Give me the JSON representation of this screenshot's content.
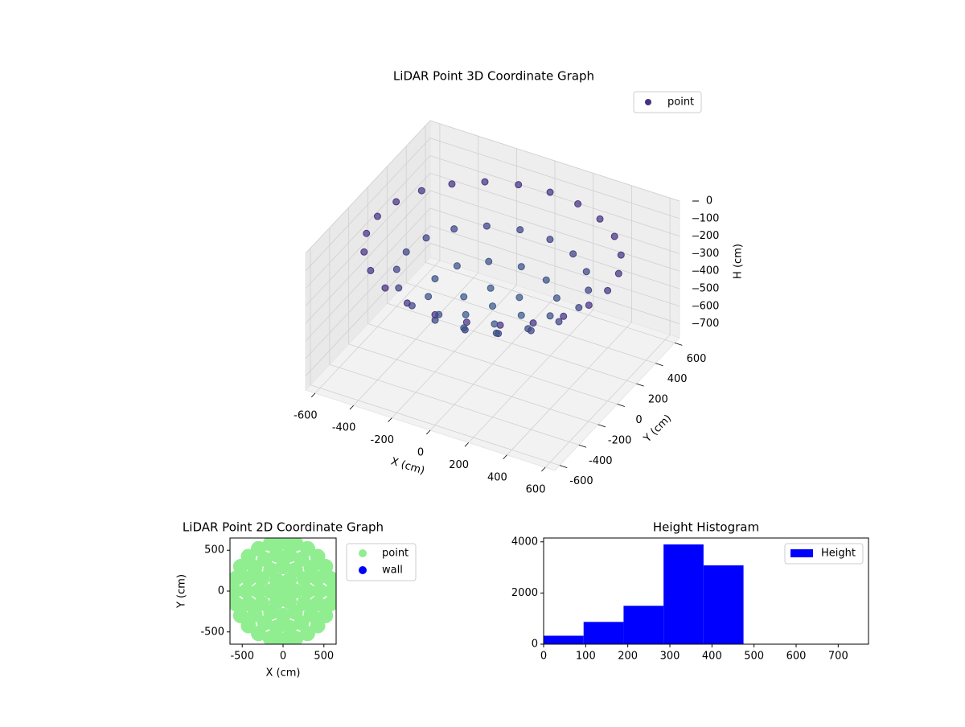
{
  "chart_data": [
    {
      "type": "scatter3d",
      "title": "LiDAR Point 3D Coordinate Graph",
      "xlabel": "X (cm)",
      "ylabel": "Y (cm)",
      "zlabel": "H (cm)",
      "xlim": [
        -650,
        650
      ],
      "ylim": [
        -650,
        650
      ],
      "zlim": [
        0,
        780
      ],
      "z_inverted": true,
      "xticks": [
        -600,
        -400,
        -200,
        0,
        200,
        400,
        600
      ],
      "yticks": [
        -600,
        -400,
        -200,
        0,
        200,
        400,
        600
      ],
      "zticks": [
        0,
        100,
        200,
        300,
        400,
        500,
        600,
        700
      ],
      "colormap": [
        "#46197a",
        "#2a7f8e"
      ],
      "legend": "upper right",
      "series": [
        {
          "name": "point",
          "color": "#46327e",
          "x": [
            600,
            580,
            520,
            424,
            300,
            155,
            0,
            -155,
            -300,
            -424,
            -520,
            -580,
            -600,
            -580,
            -520,
            -424,
            -300,
            -155,
            0,
            155,
            300,
            424,
            520,
            580,
            450,
            423,
            345,
            225,
            78,
            -78,
            -225,
            -345,
            -423,
            -450,
            -423,
            -345,
            -225,
            -78,
            78,
            225,
            345,
            423,
            300,
            260,
            150,
            0,
            -150,
            -260,
            -300,
            -260,
            -150,
            0,
            150,
            260,
            150,
            75,
            -75,
            -150,
            -75,
            75,
            0
          ],
          "y": [
            0,
            155,
            300,
            424,
            520,
            580,
            600,
            580,
            520,
            424,
            300,
            155,
            0,
            -155,
            -300,
            -424,
            -520,
            -580,
            -600,
            -580,
            -520,
            -424,
            -300,
            -155,
            0,
            154,
            289,
            390,
            443,
            443,
            390,
            289,
            154,
            0,
            -154,
            -289,
            -390,
            -443,
            -443,
            -390,
            -289,
            -154,
            0,
            150,
            260,
            300,
            260,
            150,
            0,
            -150,
            -260,
            -300,
            -260,
            -150,
            0,
            130,
            130,
            0,
            -130,
            -130,
            0
          ],
          "z": [
            150,
            150,
            150,
            150,
            150,
            150,
            150,
            150,
            150,
            150,
            150,
            150,
            150,
            150,
            150,
            150,
            150,
            150,
            150,
            150,
            150,
            150,
            150,
            150,
            300,
            300,
            300,
            300,
            300,
            300,
            300,
            300,
            300,
            300,
            300,
            300,
            300,
            300,
            300,
            300,
            300,
            300,
            400,
            400,
            400,
            400,
            400,
            400,
            400,
            400,
            400,
            400,
            400,
            400,
            450,
            450,
            450,
            450,
            450,
            450,
            450
          ]
        }
      ]
    },
    {
      "type": "scatter",
      "title": "LiDAR Point 2D Coordinate Graph",
      "xlabel": "X (cm)",
      "ylabel": "Y (cm)",
      "xlim": [
        -650,
        650
      ],
      "ylim": [
        -650,
        650
      ],
      "xticks": [
        -500,
        0,
        500
      ],
      "yticks": [
        -500,
        0,
        500
      ],
      "legend": "outside right",
      "series": [
        {
          "name": "point",
          "color": "#90ee90",
          "x": [
            600,
            580,
            520,
            424,
            300,
            155,
            0,
            -155,
            -300,
            -424,
            -520,
            -580,
            -600,
            -580,
            -520,
            -424,
            -300,
            -155,
            0,
            155,
            300,
            424,
            520,
            580,
            450,
            423,
            345,
            225,
            78,
            -78,
            -225,
            -345,
            -423,
            -450,
            -423,
            -345,
            -225,
            -78,
            78,
            225,
            345,
            423,
            300,
            260,
            150,
            0,
            -150,
            -260,
            -300,
            -260,
            -150,
            0,
            150,
            260,
            150,
            75,
            -75,
            -150,
            -75,
            75,
            0
          ],
          "y": [
            0,
            155,
            300,
            424,
            520,
            580,
            600,
            580,
            520,
            424,
            300,
            155,
            0,
            -155,
            -300,
            -424,
            -520,
            -580,
            -600,
            -580,
            -520,
            -424,
            -300,
            -155,
            0,
            154,
            289,
            390,
            443,
            443,
            390,
            289,
            154,
            0,
            -154,
            -289,
            -390,
            -443,
            -443,
            -390,
            -289,
            -154,
            0,
            150,
            260,
            300,
            260,
            150,
            0,
            -150,
            -260,
            -300,
            -260,
            -150,
            0,
            130,
            130,
            0,
            -130,
            -130,
            0
          ]
        },
        {
          "name": "wall",
          "color": "#0000ff",
          "x": [],
          "y": []
        }
      ]
    },
    {
      "type": "histogram",
      "title": "Height Histogram",
      "name": "Height",
      "color": "#0000ff",
      "bins": [
        0,
        95,
        190,
        285,
        380,
        475,
        570,
        665,
        760
      ],
      "values": [
        330,
        870,
        1500,
        3900,
        3080,
        0,
        0,
        0
      ],
      "xlim": [
        0,
        772
      ],
      "ylim": [
        0,
        4150
      ],
      "xticks": [
        0,
        100,
        200,
        300,
        400,
        500,
        600,
        700
      ],
      "yticks": [
        0,
        2000,
        4000
      ],
      "legend": "upper right"
    }
  ]
}
